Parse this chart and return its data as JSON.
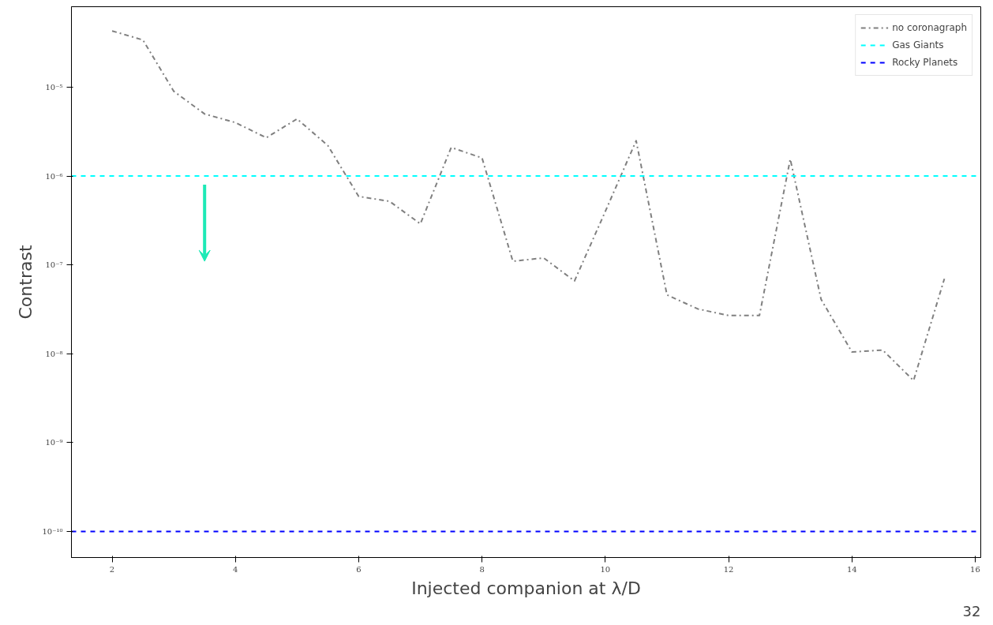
{
  "chart_data": {
    "type": "line",
    "xlabel": "Injected companion at λ/D",
    "ylabel": "Contrast",
    "log": "y",
    "grid": false,
    "legend": "top right",
    "line_style": "dashdot",
    "marker": "none",
    "x": [
      2,
      2.5,
      3,
      3.5,
      4,
      4.5,
      5,
      5.5,
      6,
      6.5,
      7,
      7.5,
      8,
      8.5,
      9,
      9.5,
      10,
      10.5,
      11,
      11.5,
      12,
      12.5,
      13,
      13.5,
      14,
      14.5,
      15,
      15.5
    ],
    "series": [
      {
        "name": "no coronagraph",
        "color": "#808080",
        "values": [
          4.3e-05,
          3.4e-05,
          9e-06,
          5e-06,
          4e-06,
          2.7e-06,
          4.4e-06,
          2.2e-06,
          5.9e-07,
          5.2e-07,
          2.9e-07,
          2.1e-06,
          1.6e-06,
          1.1e-07,
          1.2e-07,
          6.6e-08,
          4e-07,
          2.5e-06,
          4.6e-08,
          3.2e-08,
          2.7e-08,
          2.7e-08,
          1.55e-06,
          4.1e-08,
          1.05e-08,
          1.1e-08,
          5e-09,
          7e-08
        ]
      }
    ],
    "ref_lines": [
      {
        "axis": "y",
        "value": 1e-06,
        "label": "Gas Giants",
        "color": "#00ffff",
        "line_style": "dashed"
      },
      {
        "axis": "y",
        "value": 1e-10,
        "label": "Rocky Planets",
        "color": "#0000ff",
        "line_style": "dashed"
      }
    ],
    "xlim": [
      1.34,
      16.09
    ],
    "ylim": [
      5.1e-11,
      8.05e-05
    ],
    "xticks": [
      2,
      4,
      6,
      8,
      10,
      12,
      14,
      16
    ],
    "yticks": [
      {
        "value": 1e-10,
        "label": "10⁻¹⁰"
      },
      {
        "value": 1e-09,
        "label": "10⁻⁹"
      },
      {
        "value": 1e-08,
        "label": "10⁻⁸"
      },
      {
        "value": 1e-07,
        "label": "10⁻⁷"
      },
      {
        "value": 1e-06,
        "label": "10⁻⁶"
      },
      {
        "value": 1e-05,
        "label": "10⁻⁵"
      }
    ],
    "annotations": [
      "32"
    ]
  }
}
